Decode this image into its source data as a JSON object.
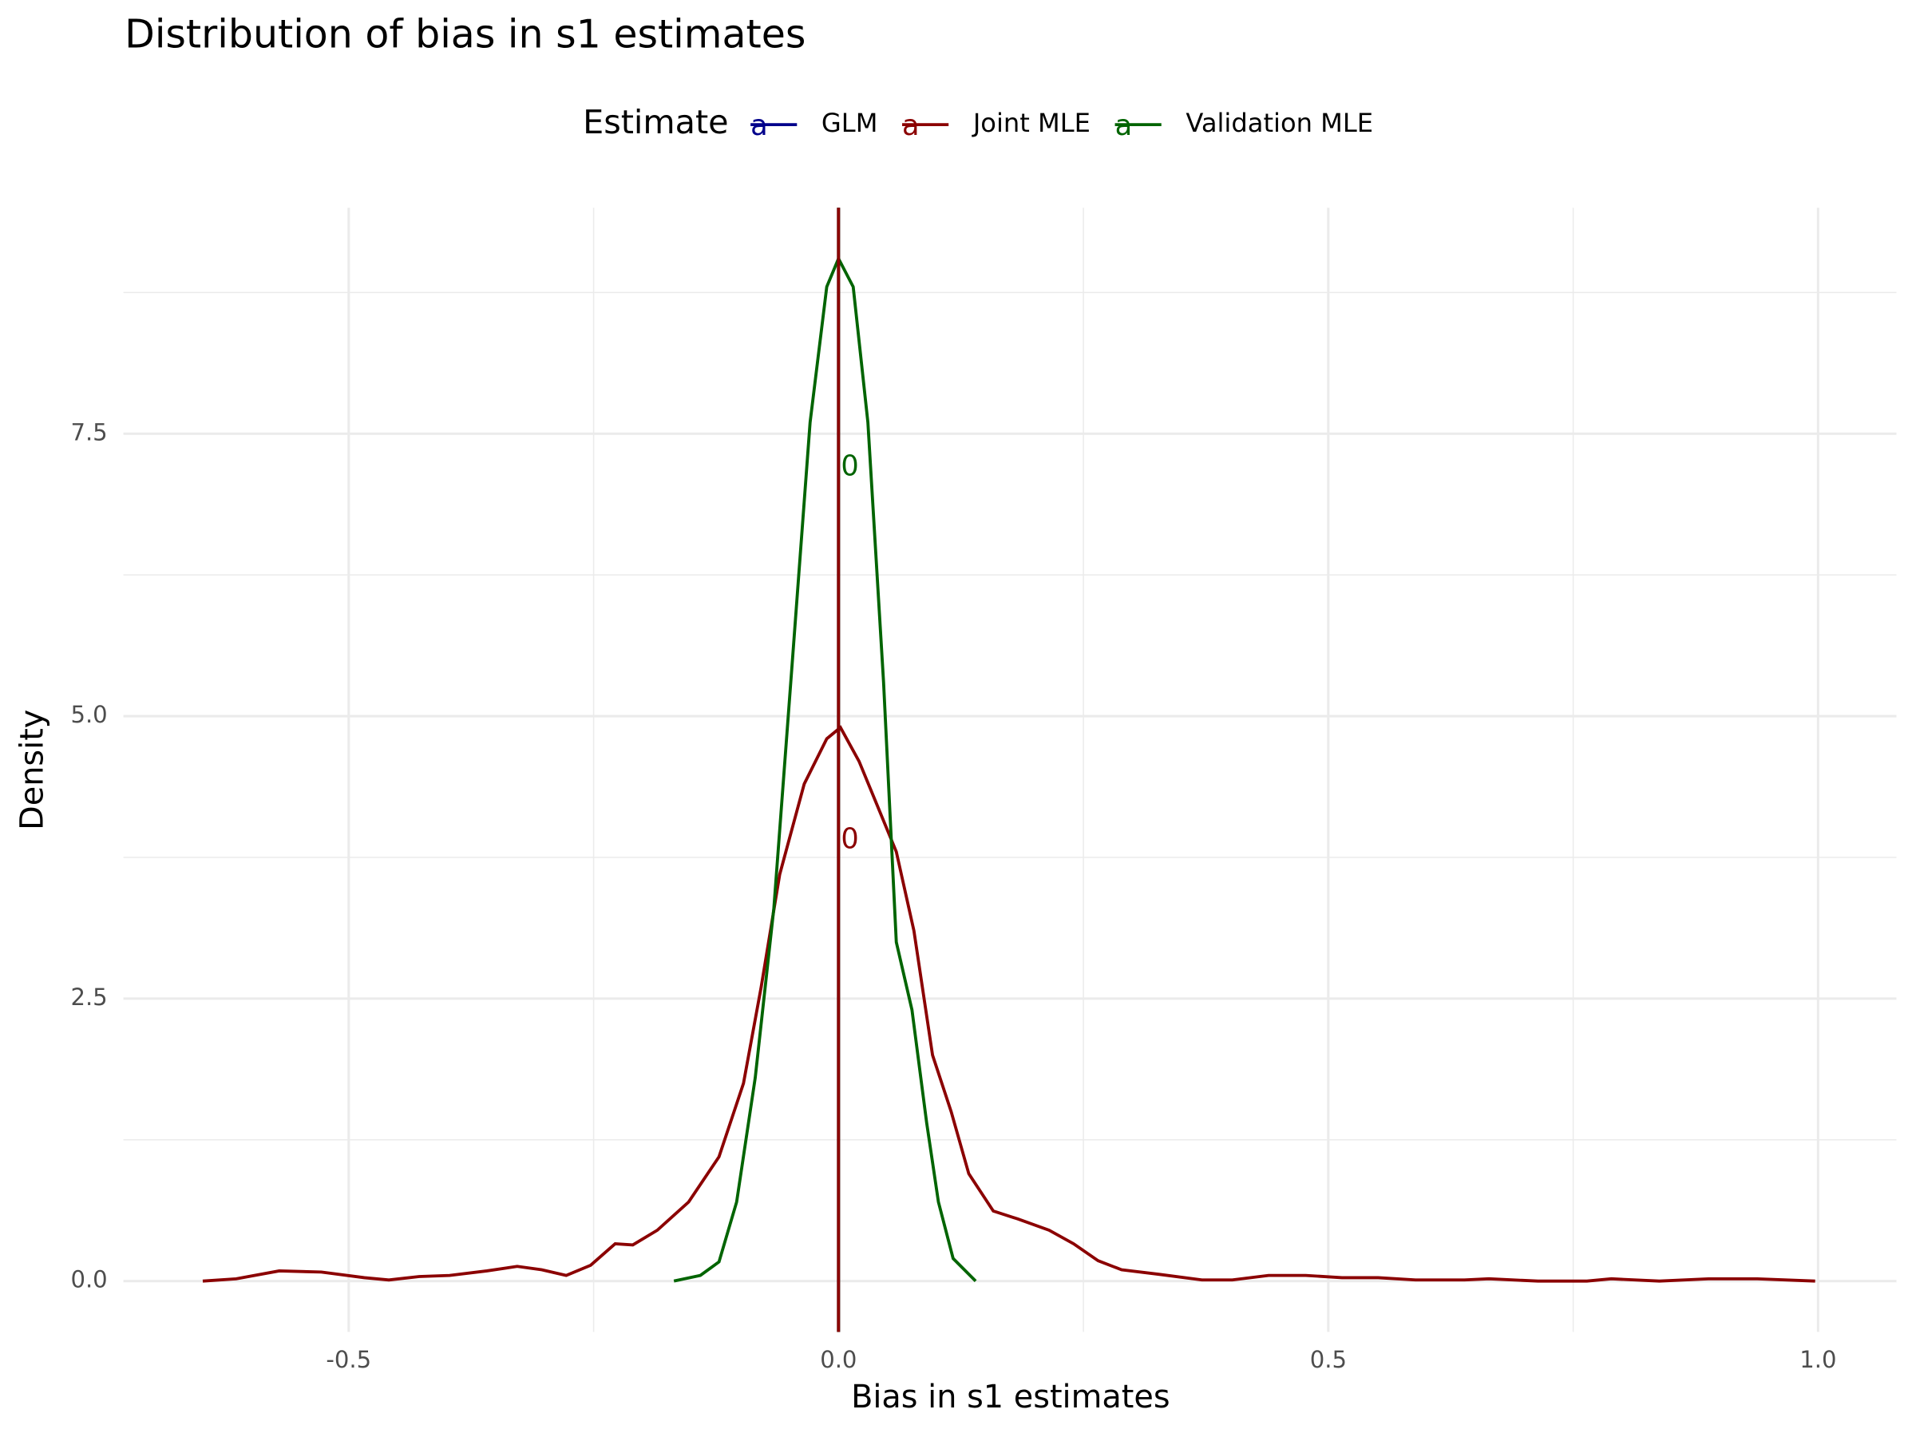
{
  "chart_data": {
    "type": "line",
    "title": "Distribution of bias in s1 estimates",
    "x_label": "Bias in s1 estimates",
    "y_label": "Density",
    "legend_title": "Estimate",
    "legend_glyph": "a",
    "legend_position": "top",
    "grid": true,
    "xlim": [
      -0.73,
      1.08
    ],
    "ylim": [
      -0.45,
      9.5
    ],
    "xticks": [
      -0.5,
      {
        "value": 0,
        "label": "0.0"
      },
      0.5,
      {
        "value": 1,
        "label": "1.0"
      }
    ],
    "yticks": [
      {
        "value": 0,
        "label": "0.0"
      },
      2.5,
      {
        "value": 5,
        "label": "5.0"
      },
      7.5
    ],
    "minor_xticks": [
      -0.25,
      0.25,
      0.75
    ],
    "minor_yticks": [
      1.25,
      3.75,
      6.25,
      8.75
    ],
    "series": [
      {
        "name": "GLM",
        "color": "#00008b",
        "x": [],
        "values": []
      },
      {
        "name": "Joint MLE",
        "color": "#8b0000",
        "x": [
          -0.649,
          -0.615,
          -0.571,
          -0.528,
          -0.484,
          -0.459,
          -0.428,
          -0.397,
          -0.359,
          -0.328,
          -0.303,
          -0.278,
          -0.253,
          -0.228,
          -0.21,
          -0.185,
          -0.153,
          -0.122,
          -0.097,
          -0.079,
          -0.06,
          -0.035,
          -0.012,
          0.002,
          0.021,
          0.04,
          0.059,
          0.077,
          0.096,
          0.115,
          0.133,
          0.158,
          0.183,
          0.215,
          0.24,
          0.265,
          0.289,
          0.327,
          0.371,
          0.402,
          0.439,
          0.477,
          0.514,
          0.551,
          0.589,
          0.639,
          0.664,
          0.714,
          0.764,
          0.789,
          0.838,
          0.888,
          0.938,
          0.997
        ],
        "values": [
          0,
          0.02,
          0.09,
          0.08,
          0.03,
          0.01,
          0.04,
          0.05,
          0.09,
          0.13,
          0.1,
          0.05,
          0.14,
          0.33,
          0.32,
          0.45,
          0.7,
          1.1,
          1.75,
          2.6,
          3.6,
          4.4,
          4.8,
          4.9,
          4.6,
          4.2,
          3.8,
          3.1,
          2.0,
          1.5,
          0.95,
          0.62,
          0.55,
          0.45,
          0.33,
          0.18,
          0.1,
          0.06,
          0.01,
          0.01,
          0.05,
          0.05,
          0.03,
          0.03,
          0.01,
          0.01,
          0.02,
          0,
          0,
          0.02,
          0,
          0.02,
          0.02,
          0
        ]
      },
      {
        "name": "Validation MLE",
        "color": "#006400",
        "x": [
          -0.168,
          -0.141,
          -0.122,
          -0.104,
          -0.085,
          -0.066,
          -0.047,
          -0.029,
          -0.012,
          0,
          0.015,
          0.03,
          0.046,
          0.059,
          0.075,
          0.09,
          0.102,
          0.117,
          0.14
        ],
        "values": [
          0,
          0.05,
          0.17,
          0.7,
          1.8,
          3.3,
          5.5,
          7.6,
          8.8,
          9.05,
          8.8,
          7.6,
          5.3,
          3.0,
          2.4,
          1.4,
          0.7,
          0.2,
          0
        ]
      }
    ],
    "vlines": [
      {
        "x": 0,
        "color": "#00008b"
      },
      {
        "x": 0,
        "color": "#006400",
        "label_y": 7.2
      },
      {
        "x": 0,
        "color": "#8b0000",
        "label_y": 3.9
      }
    ]
  }
}
